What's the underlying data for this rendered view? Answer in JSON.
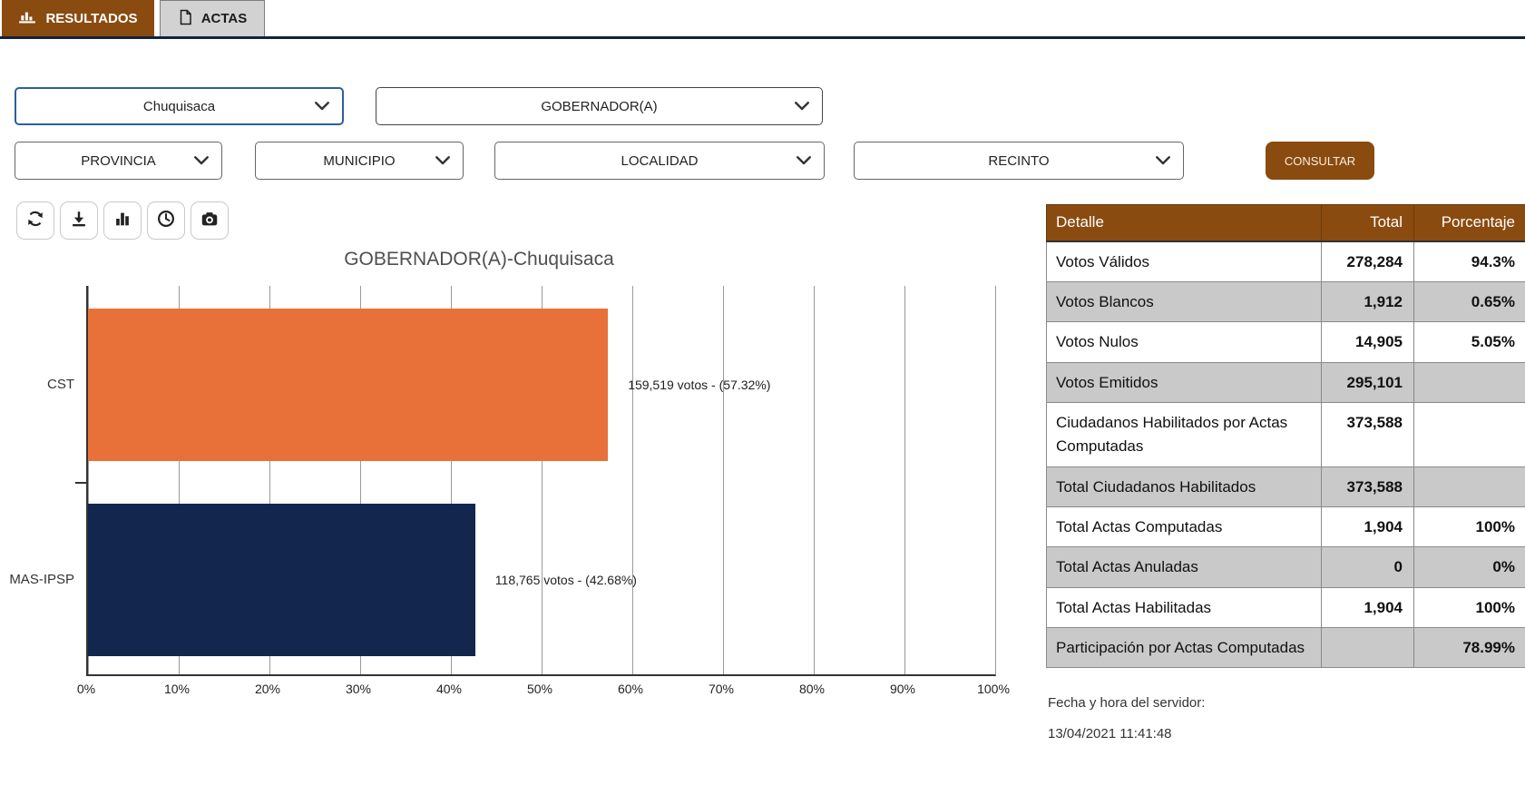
{
  "tabs": [
    {
      "label": "RESULTADOS",
      "icon": "bar-chart-icon",
      "active": true
    },
    {
      "label": "ACTAS",
      "icon": "document-icon",
      "active": false
    }
  ],
  "filters": {
    "department": "Chuquisaca",
    "office": "GOBERNADOR(A)",
    "provincia": "PROVINCIA",
    "municipio": "MUNICIPIO",
    "localidad": "LOCALIDAD",
    "recinto": "RECINTO",
    "consultar_label": "CONSULTAR"
  },
  "toolbar": {
    "buttons": [
      "refresh-icon",
      "download-icon",
      "chart-bars-icon",
      "clock-icon",
      "camera-icon"
    ]
  },
  "chart_data": {
    "type": "bar",
    "orientation": "horizontal",
    "title": "GOBERNADOR(A)-Chuquisaca",
    "categories": [
      "CST",
      "MAS-IPSP"
    ],
    "values": [
      57.32,
      42.68
    ],
    "votes": [
      159519,
      118765
    ],
    "bar_labels": [
      "159,519 votos - (57.32%)",
      "118,765 votos - (42.68%)"
    ],
    "bar_colors": [
      "#E8713A",
      "#12264E"
    ],
    "xlabel": "",
    "ylabel": "",
    "xlim": [
      0,
      100
    ],
    "x_ticks": [
      "0%",
      "10%",
      "20%",
      "30%",
      "40%",
      "50%",
      "60%",
      "70%",
      "80%",
      "90%",
      "100%"
    ],
    "grid": true,
    "legend": false
  },
  "table": {
    "headers": [
      "Detalle",
      "Total",
      "Porcentaje"
    ],
    "rows": [
      {
        "detalle": "Votos Válidos",
        "total": "278,284",
        "porcentaje": "94.3%"
      },
      {
        "detalle": "Votos Blancos",
        "total": "1,912",
        "porcentaje": "0.65%"
      },
      {
        "detalle": "Votos Nulos",
        "total": "14,905",
        "porcentaje": "5.05%"
      },
      {
        "detalle": "Votos Emitidos",
        "total": "295,101",
        "porcentaje": ""
      },
      {
        "detalle": "Ciudadanos Habilitados por Actas Computadas",
        "total": "373,588",
        "porcentaje": ""
      },
      {
        "detalle": "Total Ciudadanos Habilitados",
        "total": "373,588",
        "porcentaje": ""
      },
      {
        "detalle": "Total Actas Computadas",
        "total": "1,904",
        "porcentaje": "100%"
      },
      {
        "detalle": "Total Actas Anuladas",
        "total": "0",
        "porcentaje": "0%"
      },
      {
        "detalle": "Total Actas Habilitadas",
        "total": "1,904",
        "porcentaje": "100%"
      },
      {
        "detalle": "Participación por Actas Computadas",
        "total": "",
        "porcentaje": "78.99%"
      }
    ]
  },
  "footer": {
    "server_time_label": "Fecha y hora del servidor:",
    "server_time_value": "13/04/2021 11:41:48"
  },
  "colors": {
    "accent_brown": "#8A4B10",
    "bar_orange": "#E8713A",
    "bar_navy": "#12264E",
    "row_gray": "#C9C9C9",
    "tab_underline": "#14213D"
  }
}
